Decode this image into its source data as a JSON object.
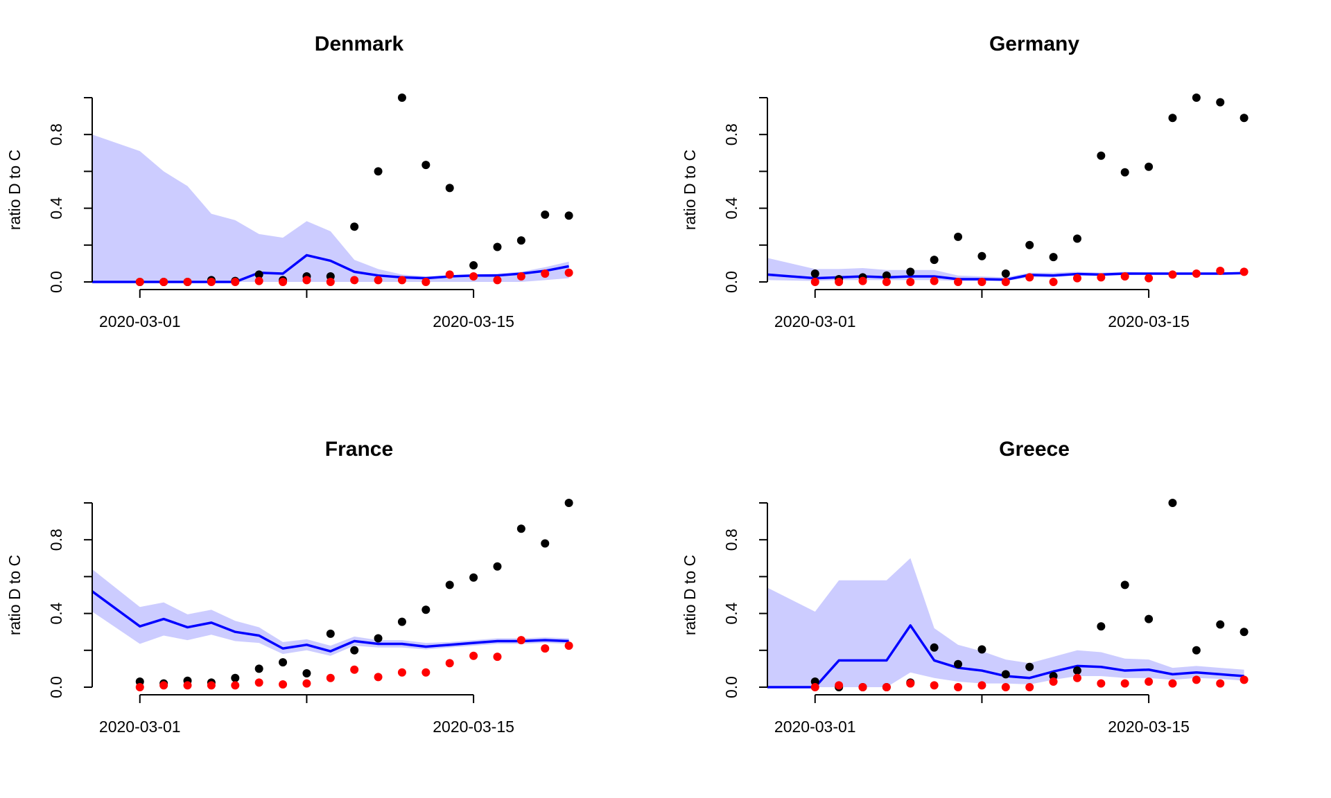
{
  "chart_data": [
    {
      "type": "line",
      "title": "Denmark",
      "ylabel": "ratio D to C",
      "xlabel": "",
      "xlim": [
        "2020-02-28",
        "2020-03-20"
      ],
      "ylim": [
        0,
        1
      ],
      "x_ticks": [
        "2020-03-01",
        "2020-03-15"
      ],
      "y_ticks": [
        "0.0",
        "0.4",
        "0.8"
      ],
      "series": [
        {
          "color": "#000000",
          "kind": "points",
          "x": [
            "2020-03-01",
            "2020-03-02",
            "2020-03-03",
            "2020-03-04",
            "2020-03-05",
            "2020-03-06",
            "2020-03-07",
            "2020-03-08",
            "2020-03-09",
            "2020-03-10",
            "2020-03-11",
            "2020-03-12",
            "2020-03-13",
            "2020-03-14",
            "2020-03-15",
            "2020-03-16",
            "2020-03-17",
            "2020-03-18",
            "2020-03-19"
          ],
          "y": [
            0.0,
            0.0,
            0.0,
            0.01,
            0.005,
            0.04,
            0.01,
            0.03,
            0.03,
            0.3,
            0.6,
            1.0,
            0.635,
            0.51,
            0.09,
            0.19,
            0.225,
            0.365,
            0.36
          ]
        },
        {
          "color": "#ff0000",
          "kind": "points",
          "x": [
            "2020-03-01",
            "2020-03-02",
            "2020-03-03",
            "2020-03-04",
            "2020-03-05",
            "2020-03-06",
            "2020-03-07",
            "2020-03-08",
            "2020-03-09",
            "2020-03-10",
            "2020-03-11",
            "2020-03-12",
            "2020-03-13",
            "2020-03-14",
            "2020-03-15",
            "2020-03-16",
            "2020-03-17",
            "2020-03-18",
            "2020-03-19"
          ],
          "y": [
            0.0,
            0.0,
            0.0,
            0.0,
            0.0,
            0.005,
            0.0,
            0.01,
            0.0,
            0.01,
            0.01,
            0.01,
            0.0,
            0.04,
            0.03,
            0.01,
            0.03,
            0.045,
            0.05
          ]
        },
        {
          "color": "#0000ff",
          "kind": "line",
          "x": [
            "2020-02-28",
            "2020-03-01",
            "2020-03-02",
            "2020-03-03",
            "2020-03-04",
            "2020-03-05",
            "2020-03-06",
            "2020-03-07",
            "2020-03-08",
            "2020-03-09",
            "2020-03-10",
            "2020-03-11",
            "2020-03-12",
            "2020-03-13",
            "2020-03-14",
            "2020-03-15",
            "2020-03-16",
            "2020-03-17",
            "2020-03-18",
            "2020-03-19"
          ],
          "y": [
            0.0,
            0.0,
            0.0,
            0.0,
            0.0,
            0.0,
            0.05,
            0.045,
            0.145,
            0.115,
            0.055,
            0.035,
            0.025,
            0.02,
            0.03,
            0.035,
            0.035,
            0.045,
            0.06,
            0.085
          ]
        },
        {
          "color": "#ccccff",
          "kind": "band",
          "x": [
            "2020-02-28",
            "2020-03-01",
            "2020-03-02",
            "2020-03-03",
            "2020-03-04",
            "2020-03-05",
            "2020-03-06",
            "2020-03-07",
            "2020-03-08",
            "2020-03-09",
            "2020-03-10",
            "2020-03-11",
            "2020-03-12",
            "2020-03-13",
            "2020-03-14",
            "2020-03-15",
            "2020-03-16",
            "2020-03-17",
            "2020-03-18",
            "2020-03-19"
          ],
          "lower": [
            0.0,
            0.0,
            0.0,
            0.0,
            0.0,
            0.0,
            0.0,
            0.0,
            0.0,
            0.0,
            0.0,
            0.0,
            0.0,
            0.0,
            0.0,
            0.0,
            0.0,
            0.0,
            0.01,
            0.02
          ],
          "upper": [
            0.8,
            0.71,
            0.6,
            0.52,
            0.37,
            0.335,
            0.26,
            0.24,
            0.33,
            0.275,
            0.12,
            0.07,
            0.04,
            0.03,
            0.035,
            0.04,
            0.045,
            0.055,
            0.08,
            0.11
          ]
        }
      ]
    },
    {
      "type": "line",
      "title": "Germany",
      "ylabel": "ratio D to C",
      "xlabel": "",
      "xlim": [
        "2020-02-28",
        "2020-03-20"
      ],
      "ylim": [
        0,
        1
      ],
      "x_ticks": [
        "2020-03-01",
        "2020-03-15"
      ],
      "y_ticks": [
        "0.0",
        "0.4",
        "0.8"
      ],
      "series": [
        {
          "color": "#000000",
          "kind": "points",
          "x": [
            "2020-03-01",
            "2020-03-02",
            "2020-03-03",
            "2020-03-04",
            "2020-03-05",
            "2020-03-06",
            "2020-03-07",
            "2020-03-08",
            "2020-03-09",
            "2020-03-10",
            "2020-03-11",
            "2020-03-12",
            "2020-03-13",
            "2020-03-14",
            "2020-03-15",
            "2020-03-16",
            "2020-03-17",
            "2020-03-18",
            "2020-03-19"
          ],
          "y": [
            0.045,
            0.015,
            0.025,
            0.035,
            0.055,
            0.12,
            0.245,
            0.14,
            0.045,
            0.2,
            0.135,
            0.235,
            0.685,
            0.595,
            0.625,
            0.89,
            1.0,
            0.975,
            0.89
          ]
        },
        {
          "color": "#ff0000",
          "kind": "points",
          "x": [
            "2020-03-01",
            "2020-03-02",
            "2020-03-03",
            "2020-03-04",
            "2020-03-05",
            "2020-03-06",
            "2020-03-07",
            "2020-03-08",
            "2020-03-09",
            "2020-03-10",
            "2020-03-11",
            "2020-03-12",
            "2020-03-13",
            "2020-03-14",
            "2020-03-15",
            "2020-03-16",
            "2020-03-17",
            "2020-03-18",
            "2020-03-19"
          ],
          "y": [
            0.0,
            0.0,
            0.005,
            0.0,
            0.0,
            0.005,
            0.0,
            0.0,
            0.0,
            0.025,
            0.0,
            0.02,
            0.025,
            0.03,
            0.02,
            0.04,
            0.045,
            0.06,
            0.055
          ]
        },
        {
          "color": "#0000ff",
          "kind": "line",
          "x": [
            "2020-02-28",
            "2020-03-01",
            "2020-03-02",
            "2020-03-03",
            "2020-03-04",
            "2020-03-05",
            "2020-03-06",
            "2020-03-07",
            "2020-03-08",
            "2020-03-09",
            "2020-03-10",
            "2020-03-11",
            "2020-03-12",
            "2020-03-13",
            "2020-03-14",
            "2020-03-15",
            "2020-03-16",
            "2020-03-17",
            "2020-03-18",
            "2020-03-19"
          ],
          "y": [
            0.04,
            0.02,
            0.025,
            0.03,
            0.025,
            0.03,
            0.03,
            0.015,
            0.015,
            0.012,
            0.038,
            0.035,
            0.043,
            0.04,
            0.045,
            0.045,
            0.045,
            0.045,
            0.045,
            0.048
          ]
        },
        {
          "color": "#ccccff",
          "kind": "band",
          "x": [
            "2020-02-28",
            "2020-03-01",
            "2020-03-02",
            "2020-03-03",
            "2020-03-04",
            "2020-03-05",
            "2020-03-06",
            "2020-03-07",
            "2020-03-08",
            "2020-03-09",
            "2020-03-10",
            "2020-03-11",
            "2020-03-12",
            "2020-03-13",
            "2020-03-14",
            "2020-03-15",
            "2020-03-16",
            "2020-03-17",
            "2020-03-18",
            "2020-03-19"
          ],
          "lower": [
            0.01,
            0.005,
            0.01,
            0.01,
            0.01,
            0.01,
            0.01,
            0.005,
            0.005,
            0.005,
            0.025,
            0.025,
            0.035,
            0.033,
            0.038,
            0.04,
            0.04,
            0.04,
            0.042,
            0.044
          ],
          "upper": [
            0.13,
            0.07,
            0.07,
            0.075,
            0.065,
            0.065,
            0.065,
            0.035,
            0.03,
            0.025,
            0.05,
            0.05,
            0.055,
            0.05,
            0.055,
            0.05,
            0.05,
            0.05,
            0.05,
            0.052
          ]
        }
      ]
    },
    {
      "type": "line",
      "title": "France",
      "ylabel": "ratio D to C",
      "xlabel": "",
      "xlim": [
        "2020-02-28",
        "2020-03-20"
      ],
      "ylim": [
        0,
        1
      ],
      "x_ticks": [
        "2020-03-01",
        "2020-03-15"
      ],
      "y_ticks": [
        "0.0",
        "0.4",
        "0.8"
      ],
      "series": [
        {
          "color": "#000000",
          "kind": "points",
          "x": [
            "2020-03-01",
            "2020-03-02",
            "2020-03-03",
            "2020-03-04",
            "2020-03-05",
            "2020-03-06",
            "2020-03-07",
            "2020-03-08",
            "2020-03-09",
            "2020-03-10",
            "2020-03-11",
            "2020-03-12",
            "2020-03-13",
            "2020-03-14",
            "2020-03-15",
            "2020-03-16",
            "2020-03-17",
            "2020-03-18",
            "2020-03-19"
          ],
          "y": [
            0.03,
            0.02,
            0.035,
            0.025,
            0.05,
            0.1,
            0.135,
            0.075,
            0.29,
            0.2,
            0.265,
            0.355,
            0.42,
            0.555,
            0.595,
            0.655,
            0.86,
            0.78,
            1.0
          ]
        },
        {
          "color": "#ff0000",
          "kind": "points",
          "x": [
            "2020-03-01",
            "2020-03-02",
            "2020-03-03",
            "2020-03-04",
            "2020-03-05",
            "2020-03-06",
            "2020-03-07",
            "2020-03-08",
            "2020-03-09",
            "2020-03-10",
            "2020-03-11",
            "2020-03-12",
            "2020-03-13",
            "2020-03-14",
            "2020-03-15",
            "2020-03-16",
            "2020-03-17",
            "2020-03-18",
            "2020-03-19"
          ],
          "y": [
            0.0,
            0.01,
            0.01,
            0.01,
            0.01,
            0.025,
            0.015,
            0.02,
            0.05,
            0.095,
            0.055,
            0.08,
            0.08,
            0.13,
            0.17,
            0.165,
            0.255,
            0.21,
            0.225
          ]
        },
        {
          "color": "#0000ff",
          "kind": "line",
          "x": [
            "2020-02-28",
            "2020-03-01",
            "2020-03-02",
            "2020-03-03",
            "2020-03-04",
            "2020-03-05",
            "2020-03-06",
            "2020-03-07",
            "2020-03-08",
            "2020-03-09",
            "2020-03-10",
            "2020-03-11",
            "2020-03-12",
            "2020-03-13",
            "2020-03-14",
            "2020-03-15",
            "2020-03-16",
            "2020-03-17",
            "2020-03-18",
            "2020-03-19"
          ],
          "y": [
            0.52,
            0.33,
            0.37,
            0.325,
            0.35,
            0.3,
            0.28,
            0.21,
            0.23,
            0.195,
            0.25,
            0.235,
            0.235,
            0.22,
            0.23,
            0.24,
            0.25,
            0.25,
            0.255,
            0.25
          ]
        },
        {
          "color": "#ccccff",
          "kind": "band",
          "x": [
            "2020-02-28",
            "2020-03-01",
            "2020-03-02",
            "2020-03-03",
            "2020-03-04",
            "2020-03-05",
            "2020-03-06",
            "2020-03-07",
            "2020-03-08",
            "2020-03-09",
            "2020-03-10",
            "2020-03-11",
            "2020-03-12",
            "2020-03-13",
            "2020-03-14",
            "2020-03-15",
            "2020-03-16",
            "2020-03-17",
            "2020-03-18",
            "2020-03-19"
          ],
          "lower": [
            0.41,
            0.235,
            0.28,
            0.255,
            0.285,
            0.25,
            0.24,
            0.18,
            0.2,
            0.17,
            0.225,
            0.215,
            0.215,
            0.205,
            0.215,
            0.225,
            0.235,
            0.235,
            0.24,
            0.235
          ],
          "upper": [
            0.64,
            0.435,
            0.46,
            0.395,
            0.42,
            0.36,
            0.325,
            0.245,
            0.26,
            0.225,
            0.275,
            0.255,
            0.255,
            0.24,
            0.245,
            0.255,
            0.265,
            0.265,
            0.27,
            0.265
          ]
        }
      ]
    },
    {
      "type": "line",
      "title": "Greece",
      "ylabel": "ratio D to C",
      "xlabel": "",
      "xlim": [
        "2020-02-28",
        "2020-03-20"
      ],
      "ylim": [
        0,
        1
      ],
      "x_ticks": [
        "2020-03-01",
        "2020-03-15"
      ],
      "y_ticks": [
        "0.0",
        "0.4",
        "0.8"
      ],
      "series": [
        {
          "color": "#000000",
          "kind": "points",
          "x": [
            "2020-03-01",
            "2020-03-02",
            "2020-03-03",
            "2020-03-04",
            "2020-03-05",
            "2020-03-06",
            "2020-03-07",
            "2020-03-08",
            "2020-03-09",
            "2020-03-10",
            "2020-03-11",
            "2020-03-12",
            "2020-03-13",
            "2020-03-14",
            "2020-03-15",
            "2020-03-16",
            "2020-03-17",
            "2020-03-18",
            "2020-03-19"
          ],
          "y": [
            0.03,
            0.0,
            0.0,
            0.0,
            0.025,
            0.215,
            0.125,
            0.205,
            0.07,
            0.11,
            0.06,
            0.09,
            0.33,
            0.555,
            0.37,
            1.0,
            0.2,
            0.34,
            0.3
          ]
        },
        {
          "color": "#ff0000",
          "kind": "points",
          "x": [
            "2020-03-01",
            "2020-03-02",
            "2020-03-03",
            "2020-03-04",
            "2020-03-05",
            "2020-03-06",
            "2020-03-07",
            "2020-03-08",
            "2020-03-09",
            "2020-03-10",
            "2020-03-11",
            "2020-03-12",
            "2020-03-13",
            "2020-03-14",
            "2020-03-15",
            "2020-03-16",
            "2020-03-17",
            "2020-03-18",
            "2020-03-19"
          ],
          "y": [
            0.0,
            0.01,
            0.0,
            0.0,
            0.02,
            0.01,
            0.0,
            0.01,
            0.0,
            0.0,
            0.03,
            0.05,
            0.02,
            0.02,
            0.03,
            0.02,
            0.04,
            0.02,
            0.04
          ]
        },
        {
          "color": "#0000ff",
          "kind": "line",
          "x": [
            "2020-02-28",
            "2020-03-01",
            "2020-03-02",
            "2020-03-03",
            "2020-03-04",
            "2020-03-05",
            "2020-03-06",
            "2020-03-07",
            "2020-03-08",
            "2020-03-09",
            "2020-03-10",
            "2020-03-11",
            "2020-03-12",
            "2020-03-13",
            "2020-03-14",
            "2020-03-15",
            "2020-03-16",
            "2020-03-17",
            "2020-03-18",
            "2020-03-19"
          ],
          "y": [
            0.0,
            0.0,
            0.145,
            0.145,
            0.145,
            0.335,
            0.145,
            0.105,
            0.09,
            0.06,
            0.05,
            0.085,
            0.115,
            0.11,
            0.09,
            0.095,
            0.07,
            0.08,
            0.07,
            0.06
          ]
        },
        {
          "color": "#ccccff",
          "kind": "band",
          "x": [
            "2020-02-28",
            "2020-03-01",
            "2020-03-02",
            "2020-03-03",
            "2020-03-04",
            "2020-03-05",
            "2020-03-06",
            "2020-03-07",
            "2020-03-08",
            "2020-03-09",
            "2020-03-10",
            "2020-03-11",
            "2020-03-12",
            "2020-03-13",
            "2020-03-14",
            "2020-03-15",
            "2020-03-16",
            "2020-03-17",
            "2020-03-18",
            "2020-03-19"
          ],
          "lower": [
            0.0,
            0.0,
            0.0,
            0.0,
            0.0,
            0.08,
            0.05,
            0.03,
            0.02,
            0.02,
            0.015,
            0.04,
            0.06,
            0.06,
            0.05,
            0.05,
            0.04,
            0.05,
            0.045,
            0.035
          ],
          "upper": [
            0.54,
            0.41,
            0.58,
            0.58,
            0.58,
            0.7,
            0.32,
            0.23,
            0.195,
            0.15,
            0.13,
            0.165,
            0.2,
            0.19,
            0.155,
            0.15,
            0.105,
            0.115,
            0.105,
            0.095
          ]
        }
      ]
    }
  ]
}
